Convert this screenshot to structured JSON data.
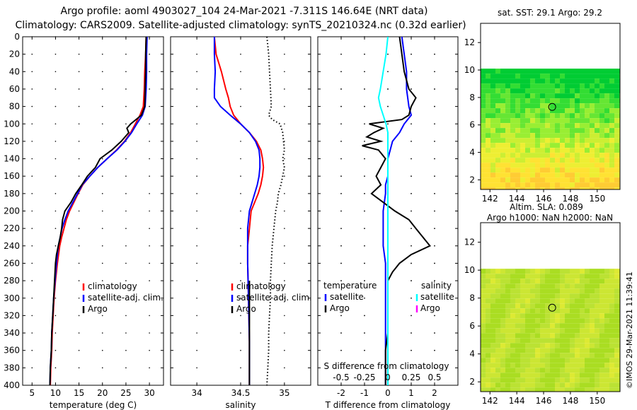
{
  "header": {
    "title_line1": "Argo profile: aoml 4903027_104 24-Mar-2021 -7.311S 146.64E (NRT data)",
    "title_line2": "Climatology: CARS2009. Satellite-adjusted climatology: synTS_20210324.nc (0.32d earlier)"
  },
  "depth_axis": {
    "ticks": [
      "0",
      "20",
      "40",
      "60",
      "80",
      "100",
      "120",
      "140",
      "160",
      "180",
      "200",
      "220",
      "240",
      "260",
      "280",
      "300",
      "320",
      "340",
      "360",
      "380",
      "400"
    ]
  },
  "colors": {
    "climatology": "#ff0000",
    "satellite": "#0000ff",
    "argo": "#000000",
    "s_satellite": "#00ffff",
    "s_argo": "#ff00ff"
  },
  "chart_data": [
    {
      "type": "line",
      "panel": "temperature",
      "xlabel": "temperature (deg C)",
      "xlim": [
        3,
        33
      ],
      "ylim": [
        0,
        400
      ],
      "x_ticks": [
        "5",
        "10",
        "15",
        "20",
        "25",
        "30"
      ],
      "x_tick_values": [
        5,
        10,
        15,
        20,
        25,
        30
      ],
      "legend": {
        "placement": "bottom-right",
        "entries": [
          "climatology",
          "satellite-adj. clim.",
          "Argo"
        ]
      },
      "series": [
        {
          "name": "climatology",
          "depth": [
            0,
            20,
            40,
            60,
            80,
            90,
            100,
            110,
            120,
            130,
            140,
            150,
            160,
            170,
            180,
            190,
            200,
            210,
            220,
            230,
            240,
            260,
            280,
            300,
            320,
            340,
            360,
            380,
            400
          ],
          "values": [
            29.3,
            29.2,
            29.0,
            28.9,
            28.7,
            28.0,
            27.0,
            26.0,
            24.7,
            23.0,
            21.0,
            19.0,
            17.3,
            15.8,
            14.8,
            13.9,
            13.0,
            12.3,
            11.8,
            11.3,
            10.9,
            10.4,
            10.0,
            9.7,
            9.5,
            9.3,
            9.2,
            9.0,
            8.9
          ]
        },
        {
          "name": "satellite-adj. clim.",
          "depth": [
            0,
            20,
            40,
            60,
            80,
            90,
            100,
            110,
            120,
            130,
            140,
            150,
            160,
            170,
            180,
            190,
            200,
            210,
            220,
            230,
            240,
            260,
            280,
            300,
            320,
            340,
            360,
            380,
            400
          ],
          "values": [
            29.5,
            29.4,
            29.4,
            29.3,
            29.1,
            28.5,
            27.3,
            26.2,
            24.8,
            23.1,
            21.0,
            19.0,
            17.3,
            15.7,
            14.7,
            13.7,
            12.7,
            12.0,
            11.4,
            11.0,
            10.6,
            10.2,
            9.9,
            9.6,
            9.4,
            9.2,
            9.1,
            8.9,
            8.8
          ]
        },
        {
          "name": "Argo",
          "depth": [
            0,
            20,
            40,
            60,
            80,
            90,
            100,
            105,
            110,
            120,
            130,
            140,
            150,
            160,
            170,
            180,
            190,
            200,
            210,
            220,
            230,
            240,
            250,
            260,
            280,
            300,
            320,
            340,
            360,
            380,
            400
          ],
          "values": [
            29.3,
            29.2,
            29.2,
            29.1,
            29.0,
            28.3,
            26.0,
            25.2,
            25.6,
            24.0,
            22.0,
            19.5,
            18.5,
            16.8,
            15.6,
            14.3,
            13.3,
            12.0,
            11.5,
            11.3,
            11.0,
            10.6,
            10.2,
            10.0,
            9.8,
            9.6,
            9.4,
            9.2,
            9.1,
            8.9,
            8.8
          ]
        }
      ]
    },
    {
      "type": "line",
      "panel": "salinity",
      "xlabel": "salinity",
      "xlim": [
        33.7,
        35.3
      ],
      "ylim": [
        0,
        400
      ],
      "x_ticks": [
        "34",
        "34.5",
        "35"
      ],
      "x_tick_values": [
        34,
        34.5,
        35
      ],
      "legend": {
        "placement": "bottom-right",
        "entries": [
          "climatology",
          "satellite-adj. clim.",
          "Argo"
        ]
      },
      "series": [
        {
          "name": "climatology",
          "depth": [
            0,
            20,
            40,
            60,
            70,
            80,
            90,
            100,
            110,
            120,
            130,
            140,
            150,
            160,
            170,
            180,
            190,
            200,
            220,
            240,
            260,
            300,
            350,
            400
          ],
          "values": [
            34.2,
            34.22,
            34.28,
            34.33,
            34.36,
            34.38,
            34.42,
            34.5,
            34.6,
            34.68,
            34.73,
            34.75,
            34.76,
            34.75,
            34.73,
            34.7,
            34.66,
            34.62,
            34.6,
            34.58,
            34.58,
            34.59,
            34.6,
            34.6
          ]
        },
        {
          "name": "satellite-adj. clim.",
          "depth": [
            0,
            20,
            40,
            60,
            70,
            80,
            90,
            100,
            110,
            120,
            130,
            140,
            150,
            160,
            170,
            180,
            190,
            200,
            220,
            240,
            260,
            300,
            350,
            400
          ],
          "values": [
            34.2,
            34.2,
            34.21,
            34.2,
            34.2,
            34.27,
            34.38,
            34.5,
            34.6,
            34.67,
            34.71,
            34.72,
            34.72,
            34.71,
            34.69,
            34.66,
            34.63,
            34.6,
            34.58,
            34.58,
            34.58,
            34.59,
            34.6,
            34.6
          ]
        },
        {
          "name": "Argo",
          "depth": [
            280,
            300,
            320,
            340,
            360,
            380,
            400
          ],
          "values": [
            34.6,
            34.6,
            34.6,
            34.6,
            34.6,
            34.6,
            34.6
          ]
        },
        {
          "name": "Argo (dotted)",
          "dotted": true,
          "depth": [
            0,
            20,
            40,
            60,
            80,
            90,
            95,
            100,
            110,
            120,
            130,
            140,
            150,
            160,
            170,
            180,
            190,
            200,
            220,
            240,
            260,
            280,
            300,
            320,
            340,
            360,
            380,
            400
          ],
          "values": [
            34.8,
            34.82,
            34.83,
            34.84,
            34.85,
            34.82,
            34.86,
            34.95,
            34.98,
            34.99,
            35.0,
            34.98,
            35.0,
            34.98,
            34.96,
            34.93,
            34.92,
            34.9,
            34.88,
            34.86,
            34.85,
            34.84,
            34.84,
            34.83,
            34.82,
            34.82,
            34.81,
            34.8
          ]
        }
      ]
    },
    {
      "type": "line",
      "panel": "difference",
      "xlabel": "T difference from climatology",
      "xlabel2": "S difference from climatology",
      "xlim": [
        -3,
        3
      ],
      "ylim": [
        0,
        400
      ],
      "x_ticks": [
        "-2",
        "-1",
        "0",
        "1",
        "2"
      ],
      "x_tick_values": [
        -2,
        -1,
        0,
        1,
        2
      ],
      "s_ticks": [
        "-0.5",
        "-0.25",
        "0",
        "0.25",
        "0.5"
      ],
      "s_tick_values": [
        -0.5,
        -0.25,
        0,
        0.25,
        0.5
      ],
      "s_scale": 4,
      "legend": {
        "placement": "bottom",
        "temperature_header": "temperature",
        "salinity_header": "salinity",
        "temperature_entries": [
          "satellite",
          "Argo"
        ],
        "salinity_entries": [
          "satellite",
          "Argo"
        ]
      },
      "series": [
        {
          "name": "T satellite",
          "depth": [
            0,
            20,
            40,
            60,
            80,
            90,
            100,
            110,
            120,
            130,
            140,
            150,
            160,
            170,
            180,
            200,
            220,
            240,
            260,
            280,
            300,
            340,
            400
          ],
          "values": [
            0.6,
            0.7,
            0.8,
            0.8,
            0.9,
            1.0,
            0.7,
            0.5,
            0.2,
            0.1,
            0.0,
            0.0,
            0.0,
            -0.1,
            -0.1,
            -0.2,
            -0.2,
            -0.2,
            -0.1,
            -0.1,
            -0.1,
            -0.1,
            -0.1
          ]
        },
        {
          "name": "T Argo",
          "depth": [
            0,
            20,
            40,
            60,
            70,
            80,
            90,
            95,
            100,
            105,
            110,
            115,
            120,
            125,
            130,
            140,
            150,
            160,
            170,
            180,
            190,
            200,
            210,
            220,
            230,
            240,
            250,
            260,
            270,
            280,
            300,
            340,
            360,
            380,
            400
          ],
          "values": [
            0.5,
            0.6,
            0.7,
            0.9,
            1.2,
            1.0,
            0.9,
            0.6,
            -0.8,
            -0.2,
            -0.6,
            -0.9,
            -0.3,
            -1.1,
            -0.4,
            -0.1,
            -0.3,
            -0.5,
            -0.3,
            -0.7,
            -0.2,
            0.3,
            0.9,
            1.2,
            1.5,
            1.8,
            1.0,
            0.5,
            0.2,
            0.0,
            0.0,
            0.0,
            -0.1,
            -0.1,
            -0.1
          ]
        },
        {
          "name": "S satellite",
          "depth": [
            0,
            20,
            40,
            60,
            70,
            80,
            90,
            100,
            110,
            120,
            140,
            160,
            200,
            250,
            300,
            400
          ],
          "values": [
            0.0,
            -0.02,
            -0.05,
            -0.08,
            -0.1,
            -0.08,
            -0.05,
            -0.02,
            0.0,
            0.0,
            0.0,
            0.0,
            0.0,
            0.0,
            0.0,
            0.0
          ]
        }
      ]
    }
  ],
  "maps": [
    {
      "title": "sat. SST: 29.1  Argo: 29.2",
      "x_ticks": [
        "142",
        "144",
        "146",
        "148",
        "150"
      ],
      "x_tick_values": [
        142,
        144,
        146,
        148,
        150
      ],
      "y_ticks": [
        "2",
        "4",
        "6",
        "8",
        "10",
        "12"
      ],
      "y_tick_values": [
        2,
        4,
        6,
        8,
        10,
        12
      ],
      "xlim": [
        141.3,
        151.7
      ],
      "ylim": [
        1.3,
        13.4
      ],
      "data_top": 10.1,
      "argo_lon": 146.64,
      "argo_lat": 7.311,
      "palette": [
        "#00cc33",
        "#33dd33",
        "#66e633",
        "#99ee33",
        "#ccee33",
        "#eeee33",
        "#ffe233",
        "#ffcc33"
      ]
    },
    {
      "title_line1": "Altim. SLA: 0.089",
      "title_line2": "Argo h1000: NaN  h2000: NaN",
      "x_ticks": [
        "142",
        "144",
        "146",
        "148",
        "150"
      ],
      "x_tick_values": [
        142,
        144,
        146,
        148,
        150
      ],
      "y_ticks": [
        "2",
        "4",
        "6",
        "8",
        "10",
        "12"
      ],
      "y_tick_values": [
        2,
        4,
        6,
        8,
        10,
        12
      ],
      "xlim": [
        141.3,
        151.7
      ],
      "ylim": [
        1.3,
        13.4
      ],
      "data_top": 10.1,
      "argo_lon": 146.64,
      "argo_lat": 7.311,
      "palette": [
        "#aadd22",
        "#bbe233",
        "#cce633",
        "#ddea33"
      ]
    }
  ],
  "credit": "©IMOS 29-Mar-2021 11:39:41"
}
